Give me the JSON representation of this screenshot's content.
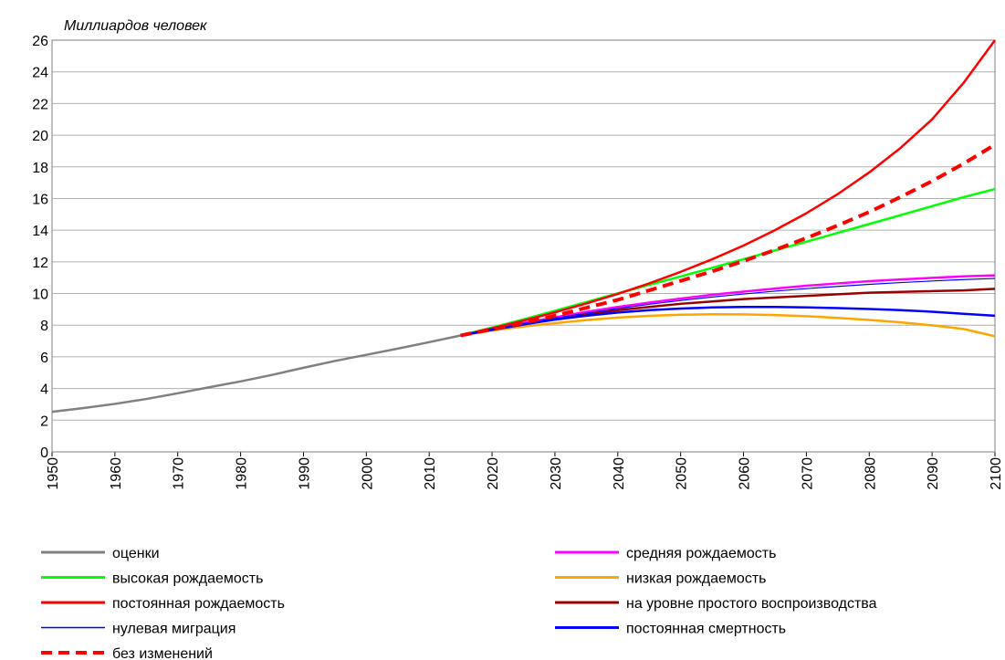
{
  "chart_data": {
    "type": "line",
    "y_label": "Миллиардов человек",
    "x": [
      1950,
      1955,
      1960,
      1965,
      1970,
      1975,
      1980,
      1985,
      1990,
      1995,
      2000,
      2005,
      2010,
      2015,
      2020,
      2025,
      2030,
      2035,
      2040,
      2045,
      2050,
      2055,
      2060,
      2065,
      2070,
      2075,
      2080,
      2085,
      2090,
      2095,
      2100
    ],
    "xlim": [
      1950,
      2100
    ],
    "xticks": [
      1950,
      1960,
      1970,
      1980,
      1990,
      2000,
      2010,
      2020,
      2030,
      2040,
      2050,
      2060,
      2070,
      2080,
      2090,
      2100
    ],
    "ylim": [
      0,
      26
    ],
    "yticks": [
      0,
      2,
      4,
      6,
      8,
      10,
      12,
      14,
      16,
      18,
      20,
      22,
      24,
      26
    ],
    "grid": true,
    "series": [
      {
        "name": "оценки",
        "color": "#808080",
        "values": [
          2.53,
          2.77,
          3.03,
          3.34,
          3.7,
          4.08,
          4.45,
          4.86,
          5.31,
          5.74,
          6.13,
          6.52,
          6.93,
          7.35,
          null,
          null,
          null,
          null,
          null,
          null,
          null,
          null,
          null,
          null,
          null,
          null,
          null,
          null,
          null,
          null,
          null
        ]
      },
      {
        "name": "средняя рождаемость",
        "color": "#ff00ff",
        "values": [
          null,
          null,
          null,
          null,
          null,
          null,
          null,
          null,
          null,
          null,
          null,
          null,
          null,
          7.35,
          7.76,
          8.14,
          8.5,
          8.84,
          9.15,
          9.43,
          9.68,
          9.92,
          10.12,
          10.31,
          10.49,
          10.64,
          10.78,
          10.89,
          10.99,
          11.08,
          11.15
        ]
      },
      {
        "name": "высокая рождаемость",
        "color": "#00ff00",
        "values": [
          null,
          null,
          null,
          null,
          null,
          null,
          null,
          null,
          null,
          null,
          null,
          null,
          null,
          7.35,
          7.85,
          8.37,
          8.91,
          9.46,
          10.01,
          10.55,
          11.08,
          11.62,
          12.17,
          12.72,
          13.27,
          13.83,
          14.39,
          14.95,
          15.52,
          16.09,
          16.6
        ]
      },
      {
        "name": "низкая рождаемость",
        "color": "#ffa500",
        "values": [
          null,
          null,
          null,
          null,
          null,
          null,
          null,
          null,
          null,
          null,
          null,
          null,
          null,
          7.35,
          7.67,
          7.92,
          8.13,
          8.32,
          8.48,
          8.59,
          8.66,
          8.69,
          8.68,
          8.64,
          8.57,
          8.46,
          8.33,
          8.18,
          7.99,
          7.76,
          7.3
        ]
      },
      {
        "name": "постоянная рождаемость",
        "color": "#ff0000",
        "values": [
          null,
          null,
          null,
          null,
          null,
          null,
          null,
          null,
          null,
          null,
          null,
          null,
          null,
          7.35,
          7.8,
          8.29,
          8.81,
          9.37,
          9.98,
          10.64,
          11.37,
          12.16,
          13.03,
          14.0,
          15.07,
          16.28,
          17.65,
          19.2,
          21.0,
          23.3,
          26.0
        ]
      },
      {
        "name": "на уровне простого воспроизводства",
        "color": "#990000",
        "values": [
          null,
          null,
          null,
          null,
          null,
          null,
          null,
          null,
          null,
          null,
          null,
          null,
          null,
          7.35,
          7.7,
          8.05,
          8.4,
          8.7,
          8.95,
          9.15,
          9.35,
          9.5,
          9.65,
          9.75,
          9.85,
          9.95,
          10.05,
          10.1,
          10.15,
          10.2,
          10.3
        ]
      },
      {
        "name": "нулевая миграция",
        "color": "#0000ff",
        "line_style": "thin",
        "values": [
          null,
          null,
          null,
          null,
          null,
          null,
          null,
          null,
          null,
          null,
          null,
          null,
          null,
          7.35,
          7.74,
          8.1,
          8.44,
          8.76,
          9.05,
          9.32,
          9.56,
          9.78,
          9.97,
          10.15,
          10.31,
          10.45,
          10.58,
          10.69,
          10.79,
          10.88,
          10.95
        ]
      },
      {
        "name": "постоянная смертность",
        "color": "#0000ff",
        "values": [
          null,
          null,
          null,
          null,
          null,
          null,
          null,
          null,
          null,
          null,
          null,
          null,
          null,
          7.35,
          7.72,
          8.05,
          8.35,
          8.6,
          8.8,
          8.95,
          9.05,
          9.12,
          9.15,
          9.15,
          9.12,
          9.08,
          9.02,
          8.95,
          8.85,
          8.72,
          8.6
        ]
      },
      {
        "name": "без изменений",
        "color": "#ff0000",
        "line_style": "dashed",
        "values": [
          null,
          null,
          null,
          null,
          null,
          null,
          null,
          null,
          null,
          null,
          null,
          null,
          null,
          7.35,
          7.75,
          8.15,
          8.6,
          9.1,
          9.6,
          10.2,
          10.8,
          11.4,
          12.05,
          12.75,
          13.5,
          14.3,
          15.15,
          16.1,
          17.1,
          18.2,
          19.4
        ]
      }
    ]
  }
}
